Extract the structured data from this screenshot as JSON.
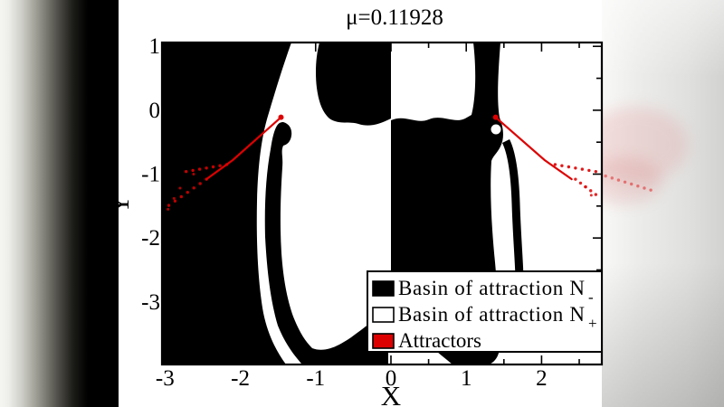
{
  "title": "μ=0.11928",
  "axes": {
    "x_label": "X",
    "y_label": "Y",
    "x_range": [
      -3.04,
      2.8
    ],
    "y_range": [
      -3.98,
      1.06
    ],
    "x_ticks_major": [
      -3,
      -2,
      -1,
      0,
      1,
      2
    ],
    "x_ticks_minor": [
      -2.5,
      -1.5,
      -0.5,
      0.5,
      1.5,
      2.5
    ],
    "y_ticks_major": [
      1,
      0,
      -1,
      -2,
      -3
    ],
    "y_ticks_minor": [
      0.5,
      -0.5,
      -1.5,
      -2.5,
      -3.5
    ]
  },
  "legend": {
    "items": [
      {
        "swatch": "basin_minus",
        "label": "Basin of attraction N",
        "sub": "-"
      },
      {
        "swatch": "basin_plus",
        "label": "Basin of attraction N",
        "sub": "+"
      },
      {
        "swatch": "attractor",
        "label": "Attractors",
        "sub": ""
      }
    ]
  },
  "colors": {
    "basin_minus": "#000000",
    "basin_plus": "#ffffff",
    "attractor": "#dd0000",
    "frame": "#000000"
  },
  "chart_data": {
    "type": "heatmap",
    "subtype": "basin-of-attraction-map",
    "mu": 0.11928,
    "title": "μ=0.11928",
    "xlabel": "X",
    "ylabel": "Y",
    "xlim": [
      -3.04,
      2.8
    ],
    "ylim": [
      -3.98,
      1.06
    ],
    "grid": false,
    "legend_position": "lower-right-inside",
    "regions": [
      {
        "name": "Basin of attraction N-",
        "color": "#000000",
        "description": "dominates left half (x<0) and lower-central-right lobe; black tongue at top just left of x=0; thin black band with round bulb near (-1.45,-0.3) running down to bottom"
      },
      {
        "name": "Basin of attraction N+",
        "color": "#ffffff",
        "description": "dominates right half (x>0) and a large white vase/U-shaped region between x=-1.45 and x=0 below y=-0.2; white filament from top edge near x=-1.3 hooking around black bulb and running to bottom edge"
      }
    ],
    "attractors": {
      "left": {
        "endpoint": [
          -1.46,
          -0.11
        ],
        "solid": [
          [
            -1.46,
            -0.11
          ],
          [
            -2.1,
            -0.78
          ],
          [
            -2.45,
            -1.08
          ]
        ],
        "dotted_upper": [
          [
            -2.18,
            -0.85
          ],
          [
            -2.72,
            -0.96
          ]
        ],
        "dotted_lower": [
          [
            -2.45,
            -1.08
          ],
          [
            -2.95,
            -1.49
          ]
        ],
        "scatter": [
          [
            -2.62,
            -1.0
          ],
          [
            -2.8,
            -1.22
          ],
          [
            -2.88,
            -1.38
          ],
          [
            -2.96,
            -1.55
          ]
        ]
      },
      "right": {
        "endpoint": [
          1.39,
          -0.11
        ],
        "solid": [
          [
            1.39,
            -0.11
          ],
          [
            2.04,
            -0.78
          ],
          [
            2.4,
            -1.08
          ]
        ],
        "dotted_upper": [
          [
            2.18,
            -0.85
          ],
          [
            2.72,
            -0.96
          ]
        ],
        "dotted_outer": [
          [
            2.85,
            -1.03
          ],
          [
            3.45,
            -1.25
          ]
        ],
        "dotted_lower": [
          [
            2.45,
            -1.08
          ],
          [
            2.72,
            -1.32
          ]
        ],
        "scatter": [
          [
            2.58,
            -1.2
          ],
          [
            2.66,
            -1.33
          ]
        ]
      }
    }
  }
}
